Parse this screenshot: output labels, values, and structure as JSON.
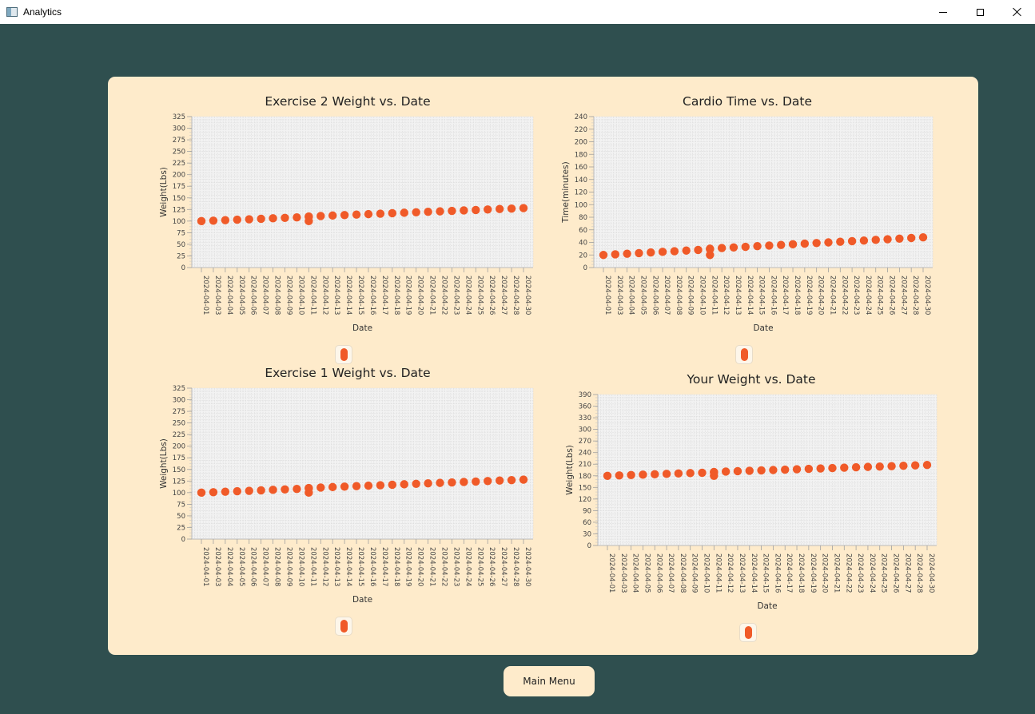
{
  "window": {
    "title": "Analytics"
  },
  "main_menu_label": "Main Menu",
  "colors": {
    "background": "#2f4f4f",
    "panel": "#feebcb",
    "point": "#f05a28",
    "plot": "#f2f2f2"
  },
  "chart_data": [
    {
      "type": "scatter",
      "title": "Exercise 2 Weight vs. Date",
      "xlabel": "Date",
      "ylabel": "Weight(Lbs)",
      "ylim": [
        0,
        325
      ],
      "yticks": [
        "0",
        "25",
        "50",
        "75",
        "100",
        "125",
        "150",
        "175",
        "200",
        "225",
        "250",
        "275",
        "300",
        "325"
      ],
      "categories": [
        "2024-04-01",
        "2024-04-03",
        "2024-04-04",
        "2024-04-05",
        "2024-04-06",
        "2024-04-07",
        "2024-04-08",
        "2024-04-09",
        "2024-04-10",
        "2024-04-11",
        "2024-04-12",
        "2024-04-13",
        "2024-04-14",
        "2024-04-15",
        "2024-04-16",
        "2024-04-17",
        "2024-04-18",
        "2024-04-19",
        "2024-04-20",
        "2024-04-21",
        "2024-04-22",
        "2024-04-23",
        "2024-04-24",
        "2024-04-25",
        "2024-04-26",
        "2024-04-27",
        "2024-04-28",
        "2024-04-30"
      ],
      "points": [
        {
          "x": "2024-04-01",
          "y": 100
        },
        {
          "x": "2024-04-03",
          "y": 101
        },
        {
          "x": "2024-04-04",
          "y": 102
        },
        {
          "x": "2024-04-05",
          "y": 103
        },
        {
          "x": "2024-04-06",
          "y": 104
        },
        {
          "x": "2024-04-07",
          "y": 105
        },
        {
          "x": "2024-04-08",
          "y": 106
        },
        {
          "x": "2024-04-09",
          "y": 107
        },
        {
          "x": "2024-04-10",
          "y": 108
        },
        {
          "x": "2024-04-11",
          "y": 109
        },
        {
          "x": "2024-04-11",
          "y": 110
        },
        {
          "x": "2024-04-11",
          "y": 100
        },
        {
          "x": "2024-04-12",
          "y": 111
        },
        {
          "x": "2024-04-13",
          "y": 112
        },
        {
          "x": "2024-04-14",
          "y": 113
        },
        {
          "x": "2024-04-15",
          "y": 114
        },
        {
          "x": "2024-04-16",
          "y": 115
        },
        {
          "x": "2024-04-17",
          "y": 116
        },
        {
          "x": "2024-04-18",
          "y": 117
        },
        {
          "x": "2024-04-19",
          "y": 118
        },
        {
          "x": "2024-04-20",
          "y": 119
        },
        {
          "x": "2024-04-21",
          "y": 120
        },
        {
          "x": "2024-04-22",
          "y": 121
        },
        {
          "x": "2024-04-23",
          "y": 122
        },
        {
          "x": "2024-04-24",
          "y": 123
        },
        {
          "x": "2024-04-25",
          "y": 124
        },
        {
          "x": "2024-04-26",
          "y": 125
        },
        {
          "x": "2024-04-27",
          "y": 126
        },
        {
          "x": "2024-04-28",
          "y": 127
        },
        {
          "x": "2024-04-30",
          "y": 128
        }
      ],
      "grid": true,
      "legend": "bottom"
    },
    {
      "type": "scatter",
      "title": "Cardio Time vs. Date",
      "xlabel": "Date",
      "ylabel": "Time(minutes)",
      "ylim": [
        0,
        240
      ],
      "yticks": [
        "0",
        "20",
        "40",
        "60",
        "80",
        "100",
        "120",
        "140",
        "160",
        "180",
        "200",
        "220",
        "240"
      ],
      "categories": [
        "2024-04-01",
        "2024-04-03",
        "2024-04-04",
        "2024-04-05",
        "2024-04-06",
        "2024-04-07",
        "2024-04-08",
        "2024-04-09",
        "2024-04-10",
        "2024-04-11",
        "2024-04-12",
        "2024-04-13",
        "2024-04-14",
        "2024-04-15",
        "2024-04-16",
        "2024-04-17",
        "2024-04-18",
        "2024-04-19",
        "2024-04-20",
        "2024-04-21",
        "2024-04-22",
        "2024-04-23",
        "2024-04-24",
        "2024-04-25",
        "2024-04-26",
        "2024-04-27",
        "2024-04-28",
        "2024-04-30"
      ],
      "points": [
        {
          "x": "2024-04-01",
          "y": 20
        },
        {
          "x": "2024-04-03",
          "y": 21
        },
        {
          "x": "2024-04-04",
          "y": 22
        },
        {
          "x": "2024-04-05",
          "y": 23
        },
        {
          "x": "2024-04-06",
          "y": 24
        },
        {
          "x": "2024-04-07",
          "y": 25
        },
        {
          "x": "2024-04-08",
          "y": 26
        },
        {
          "x": "2024-04-09",
          "y": 27
        },
        {
          "x": "2024-04-10",
          "y": 28
        },
        {
          "x": "2024-04-11",
          "y": 29
        },
        {
          "x": "2024-04-11",
          "y": 30
        },
        {
          "x": "2024-04-11",
          "y": 20
        },
        {
          "x": "2024-04-12",
          "y": 31
        },
        {
          "x": "2024-04-13",
          "y": 32
        },
        {
          "x": "2024-04-14",
          "y": 33
        },
        {
          "x": "2024-04-15",
          "y": 34
        },
        {
          "x": "2024-04-16",
          "y": 35
        },
        {
          "x": "2024-04-17",
          "y": 36
        },
        {
          "x": "2024-04-18",
          "y": 37
        },
        {
          "x": "2024-04-19",
          "y": 38
        },
        {
          "x": "2024-04-20",
          "y": 39
        },
        {
          "x": "2024-04-21",
          "y": 40
        },
        {
          "x": "2024-04-22",
          "y": 41
        },
        {
          "x": "2024-04-23",
          "y": 42
        },
        {
          "x": "2024-04-24",
          "y": 43
        },
        {
          "x": "2024-04-25",
          "y": 44
        },
        {
          "x": "2024-04-26",
          "y": 45
        },
        {
          "x": "2024-04-27",
          "y": 46
        },
        {
          "x": "2024-04-28",
          "y": 47
        },
        {
          "x": "2024-04-30",
          "y": 48
        }
      ],
      "grid": true,
      "legend": "bottom"
    },
    {
      "type": "scatter",
      "title": "Exercise 1 Weight vs. Date",
      "xlabel": "Date",
      "ylabel": "Weight(Lbs)",
      "ylim": [
        0,
        325
      ],
      "yticks": [
        "0",
        "25",
        "50",
        "75",
        "100",
        "125",
        "150",
        "175",
        "200",
        "225",
        "250",
        "275",
        "300",
        "325"
      ],
      "categories": [
        "2024-04-01",
        "2024-04-03",
        "2024-04-04",
        "2024-04-05",
        "2024-04-06",
        "2024-04-07",
        "2024-04-08",
        "2024-04-09",
        "2024-04-10",
        "2024-04-11",
        "2024-04-12",
        "2024-04-13",
        "2024-04-14",
        "2024-04-15",
        "2024-04-16",
        "2024-04-17",
        "2024-04-18",
        "2024-04-19",
        "2024-04-20",
        "2024-04-21",
        "2024-04-22",
        "2024-04-23",
        "2024-04-24",
        "2024-04-25",
        "2024-04-26",
        "2024-04-27",
        "2024-04-28",
        "2024-04-30"
      ],
      "points": [
        {
          "x": "2024-04-01",
          "y": 100
        },
        {
          "x": "2024-04-03",
          "y": 101
        },
        {
          "x": "2024-04-04",
          "y": 102
        },
        {
          "x": "2024-04-05",
          "y": 103
        },
        {
          "x": "2024-04-06",
          "y": 104
        },
        {
          "x": "2024-04-07",
          "y": 105
        },
        {
          "x": "2024-04-08",
          "y": 106
        },
        {
          "x": "2024-04-09",
          "y": 107
        },
        {
          "x": "2024-04-10",
          "y": 108
        },
        {
          "x": "2024-04-11",
          "y": 109
        },
        {
          "x": "2024-04-11",
          "y": 110
        },
        {
          "x": "2024-04-11",
          "y": 100
        },
        {
          "x": "2024-04-12",
          "y": 111
        },
        {
          "x": "2024-04-13",
          "y": 112
        },
        {
          "x": "2024-04-14",
          "y": 113
        },
        {
          "x": "2024-04-15",
          "y": 114
        },
        {
          "x": "2024-04-16",
          "y": 115
        },
        {
          "x": "2024-04-17",
          "y": 116
        },
        {
          "x": "2024-04-18",
          "y": 117
        },
        {
          "x": "2024-04-19",
          "y": 118
        },
        {
          "x": "2024-04-20",
          "y": 119
        },
        {
          "x": "2024-04-21",
          "y": 120
        },
        {
          "x": "2024-04-22",
          "y": 121
        },
        {
          "x": "2024-04-23",
          "y": 122
        },
        {
          "x": "2024-04-24",
          "y": 123
        },
        {
          "x": "2024-04-25",
          "y": 124
        },
        {
          "x": "2024-04-26",
          "y": 125
        },
        {
          "x": "2024-04-27",
          "y": 126
        },
        {
          "x": "2024-04-28",
          "y": 127
        },
        {
          "x": "2024-04-30",
          "y": 128
        }
      ],
      "grid": true,
      "legend": "bottom"
    },
    {
      "type": "scatter",
      "title": "Your Weight vs. Date",
      "xlabel": "Date",
      "ylabel": "Weight(Lbs)",
      "ylim": [
        0,
        390
      ],
      "yticks": [
        "0",
        "30",
        "60",
        "90",
        "120",
        "150",
        "180",
        "210",
        "240",
        "270",
        "300",
        "330",
        "360",
        "390"
      ],
      "categories": [
        "2024-04-01",
        "2024-04-03",
        "2024-04-04",
        "2024-04-05",
        "2024-04-06",
        "2024-04-07",
        "2024-04-08",
        "2024-04-09",
        "2024-04-10",
        "2024-04-11",
        "2024-04-12",
        "2024-04-13",
        "2024-04-14",
        "2024-04-15",
        "2024-04-16",
        "2024-04-17",
        "2024-04-18",
        "2024-04-19",
        "2024-04-20",
        "2024-04-21",
        "2024-04-22",
        "2024-04-23",
        "2024-04-24",
        "2024-04-25",
        "2024-04-26",
        "2024-04-27",
        "2024-04-28",
        "2024-04-30"
      ],
      "points": [
        {
          "x": "2024-04-01",
          "y": 180
        },
        {
          "x": "2024-04-03",
          "y": 181
        },
        {
          "x": "2024-04-04",
          "y": 182
        },
        {
          "x": "2024-04-05",
          "y": 183
        },
        {
          "x": "2024-04-06",
          "y": 184
        },
        {
          "x": "2024-04-07",
          "y": 185
        },
        {
          "x": "2024-04-08",
          "y": 186
        },
        {
          "x": "2024-04-09",
          "y": 187
        },
        {
          "x": "2024-04-10",
          "y": 188
        },
        {
          "x": "2024-04-11",
          "y": 189
        },
        {
          "x": "2024-04-11",
          "y": 190
        },
        {
          "x": "2024-04-11",
          "y": 180
        },
        {
          "x": "2024-04-12",
          "y": 191
        },
        {
          "x": "2024-04-13",
          "y": 192
        },
        {
          "x": "2024-04-14",
          "y": 193
        },
        {
          "x": "2024-04-15",
          "y": 194
        },
        {
          "x": "2024-04-16",
          "y": 195
        },
        {
          "x": "2024-04-17",
          "y": 196
        },
        {
          "x": "2024-04-18",
          "y": 197
        },
        {
          "x": "2024-04-19",
          "y": 198
        },
        {
          "x": "2024-04-20",
          "y": 199
        },
        {
          "x": "2024-04-21",
          "y": 200
        },
        {
          "x": "2024-04-22",
          "y": 201
        },
        {
          "x": "2024-04-23",
          "y": 202
        },
        {
          "x": "2024-04-24",
          "y": 203
        },
        {
          "x": "2024-04-25",
          "y": 204
        },
        {
          "x": "2024-04-26",
          "y": 205
        },
        {
          "x": "2024-04-27",
          "y": 206
        },
        {
          "x": "2024-04-28",
          "y": 207
        },
        {
          "x": "2024-04-30",
          "y": 208
        }
      ],
      "grid": true,
      "legend": "bottom"
    }
  ]
}
